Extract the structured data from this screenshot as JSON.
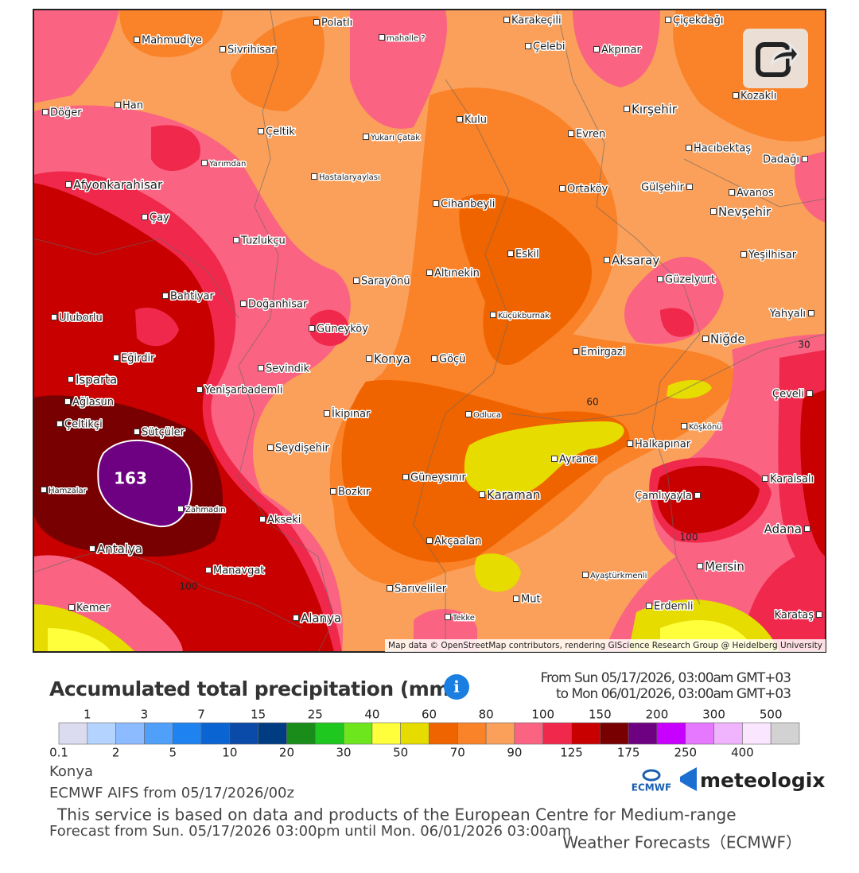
{
  "map": {
    "attribution": "Map data © OpenStreetMap contributors, rendering GIScience Research Group @ Heidelberg University",
    "cities": [
      "Polatlı",
      "Karakeçili",
      "Çiçekdağı",
      "Mahmudiye",
      "Sivrihisar",
      "mahalle ?",
      "Çelebi",
      "Akpınar",
      "Döğer",
      "Han",
      "Kırşehir",
      "Kozaklı",
      "Kulu",
      "Çeltik",
      "Yukarı Çatak",
      "Evren",
      "Hacıbektaş",
      "Yarımdan",
      "Dadağı",
      "Hastalaryaylası",
      "Afyonkarahisar",
      "Cihanbeyli",
      "Ortaköy",
      "Gülşehir",
      "Avanos",
      "Çay",
      "Nevşehir",
      "Tuzlukçu",
      "Eskil",
      "Yeşilhisar",
      "Aksaray",
      "Altınekin",
      "Sarayönü",
      "Güzelyurt",
      "Bahtiyar",
      "Doğanhisar",
      "Uluborlu",
      "Küçükburnak",
      "Yahyalı",
      "Güneyköy",
      "Niğde",
      "Eğirdir",
      "Emirgazi",
      "Konya",
      "Göçü",
      "Sevindik",
      "Isparta",
      "Yenişarbademli",
      "Ağlasun",
      "Çeveli",
      "Çeltikçi",
      "Sütçüler",
      "İkipınar",
      "Odluca",
      "Köşkönü",
      "Seydişehir",
      "Halkapınar",
      "Ayrancı",
      "Güneysınır",
      "Karaisalı",
      "Hamzalar",
      "Bozkır",
      "Karaman",
      "Çamlıyayla",
      "Zahmadın",
      "Akseki",
      "Adana",
      "Akçaalan",
      "Antalya",
      "Mersin",
      "Manavgat",
      "Ayaştürkmenli",
      "Sarıveliler",
      "Mut",
      "Kemer",
      "Erdemli",
      "Alanya",
      "Tekke",
      "Karataş"
    ],
    "contour_labels": [
      163,
      100,
      60,
      30,
      100
    ]
  },
  "legend": {
    "title": "Accumulated total precipitation (mm)",
    "period_from": "From Sun 05/17/2026, 03:00am GMT+03",
    "period_to": "to Mon 06/01/2026, 03:00am GMT+03",
    "bounds": [
      0.1,
      1,
      2,
      3,
      5,
      7,
      10,
      15,
      20,
      25,
      30,
      40,
      50,
      60,
      70,
      80,
      90,
      100,
      125,
      150,
      175,
      200,
      250,
      300,
      400,
      500
    ],
    "colors": [
      "#dcdcf0",
      "#b4d4ff",
      "#8cbcff",
      "#50a0fa",
      "#1e82f0",
      "#0a64d2",
      "#0a4aa8",
      "#003c82",
      "#1a8c1a",
      "#1ec81e",
      "#6ee61e",
      "#ffff3c",
      "#e6dc00",
      "#f06400",
      "#fa8228",
      "#faa05a",
      "#fa6482",
      "#f0284b",
      "#c80000",
      "#780000",
      "#6e0082",
      "#c800ff",
      "#e678ff",
      "#f0b4ff",
      "#fae6ff",
      "#d2d2d2"
    ]
  },
  "footer": {
    "location": "Konya",
    "model": "ECMWF AIFS from 05/17/2026/00z",
    "notice_line1": "This service is based on data and products of the European Centre for Medium-range",
    "notice_line2": "Weather Forecasts（ECMWF）",
    "forecast_range": "Forecast from Sun. 05/17/2026 03:00pm until Mon. 06/01/2026 03:00am",
    "ecmwf_logo": "ECMWF",
    "brand": "meteologix"
  }
}
